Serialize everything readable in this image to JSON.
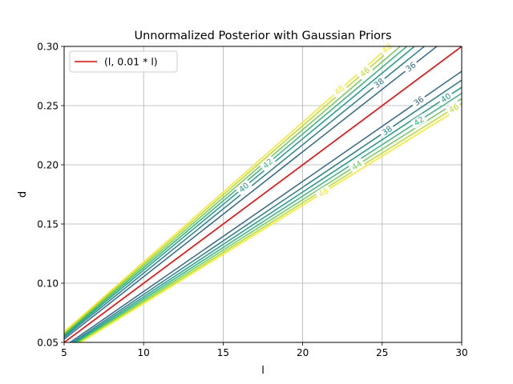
{
  "chart_data": {
    "type": "line",
    "title": "Unnormalized Posterior with Gaussian Priors",
    "xlabel": "l",
    "ylabel": "d",
    "xlim": [
      5,
      30
    ],
    "ylim": [
      0.05,
      0.3
    ],
    "xticks": [
      5,
      10,
      15,
      20,
      25,
      30
    ],
    "xtick_labels": [
      "5",
      "10",
      "15",
      "20",
      "25",
      "30"
    ],
    "yticks": [
      0.05,
      0.1,
      0.15,
      0.2,
      0.25,
      0.3
    ],
    "ytick_labels": [
      "0.05",
      "0.10",
      "0.15",
      "0.20",
      "0.25",
      "0.30"
    ],
    "grid": true,
    "legend": "top-left",
    "series": [
      {
        "name": "(l, 0.01 * l)",
        "color": "#ff0000",
        "x": [
          5,
          30
        ],
        "y": [
          0.05,
          0.3
        ]
      }
    ],
    "contours": {
      "colors": [
        "#31688e",
        "#26828e",
        "#1f9e89",
        "#35b779",
        "#6ece58",
        "#b5de2b",
        "#fde725"
      ],
      "levels": [
        36,
        38,
        40,
        42,
        44,
        46,
        48
      ],
      "upper_slopes": [
        0.01055,
        0.01085,
        0.0111,
        0.0113,
        0.01148,
        0.01165,
        0.0118
      ],
      "lower_slopes": [
        0.0093,
        0.00905,
        0.00885,
        0.00868,
        0.00853,
        0.0084,
        0.0083
      ],
      "labels": [
        {
          "text": "36",
          "side": "upper",
          "level": 36,
          "x": 26.8
        },
        {
          "text": "38",
          "side": "upper",
          "level": 38,
          "x": 24.8
        },
        {
          "text": "40",
          "side": "upper",
          "level": 40,
          "x": 16.3
        },
        {
          "text": "42",
          "side": "upper",
          "level": 42,
          "x": 17.8
        },
        {
          "text": "46",
          "side": "upper",
          "level": 46,
          "x": 23.9
        },
        {
          "text": "48",
          "side": "upper",
          "level": 48,
          "x": 22.3
        },
        {
          "text": "48",
          "side": "upper",
          "level": 48,
          "x": 25.3
        },
        {
          "text": "36",
          "side": "lower",
          "level": 36,
          "x": 27.3
        },
        {
          "text": "38",
          "side": "lower",
          "level": 38,
          "x": 25.3
        },
        {
          "text": "40",
          "side": "lower",
          "level": 40,
          "x": 29.0
        },
        {
          "text": "42",
          "side": "lower",
          "level": 42,
          "x": 27.3
        },
        {
          "text": "44",
          "side": "lower",
          "level": 44,
          "x": 23.4
        },
        {
          "text": "46",
          "side": "lower",
          "level": 46,
          "x": 29.5
        },
        {
          "text": "48",
          "side": "lower",
          "level": 48,
          "x": 21.3
        }
      ]
    }
  }
}
